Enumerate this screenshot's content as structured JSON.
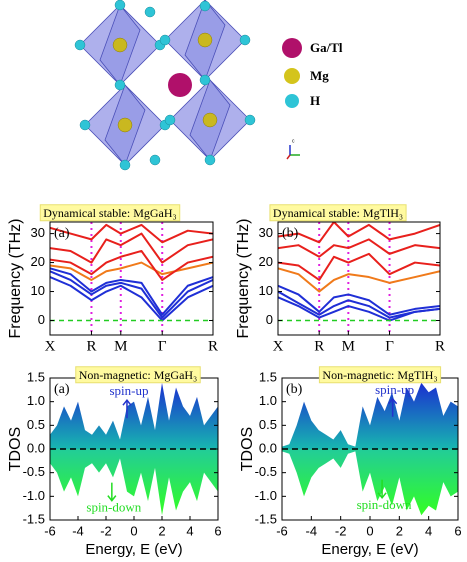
{
  "structure": {
    "legend": [
      "Ga/Tl",
      "Mg",
      "H"
    ],
    "axis_label": "c"
  },
  "chart_data": [
    {
      "type": "line",
      "title": "Dynamical stable: MgGaH₃",
      "panel_label": "(a)",
      "ylabel": "Frequency (THz)",
      "x": [
        0,
        0.35,
        0.707,
        0.96,
        1.207,
        1.56,
        1.914,
        2.35,
        2.78
      ],
      "xlim": [
        0,
        2.78
      ],
      "xticks": [
        {
          "value": 0,
          "label": "X"
        },
        {
          "value": 0.707,
          "label": "R"
        },
        {
          "value": 1.207,
          "label": "M"
        },
        {
          "value": 1.914,
          "label": "Γ"
        },
        {
          "value": 2.78,
          "label": "R"
        }
      ],
      "ylim": [
        -5,
        34
      ],
      "yticks": [
        0,
        10,
        20,
        30
      ],
      "zero_line": true,
      "symmetry_lines": true,
      "series": [
        {
          "color": "#1f2fd6",
          "values": [
            15,
            12,
            7,
            10,
            12,
            8,
            0,
            8,
            12
          ]
        },
        {
          "color": "#1f2fd6",
          "values": [
            17,
            14,
            9,
            12,
            13,
            11,
            1,
            10,
            14
          ]
        },
        {
          "color": "#1f2fd6",
          "values": [
            18,
            16,
            10,
            13,
            14,
            13,
            2,
            12,
            15
          ]
        },
        {
          "color": "#f07a1a",
          "values": [
            19,
            18,
            14,
            17,
            18,
            20,
            16,
            18,
            20
          ]
        },
        {
          "color": "#e8201c",
          "values": [
            21,
            20,
            16,
            20,
            22,
            24,
            14,
            20,
            22
          ]
        },
        {
          "color": "#e8201c",
          "values": [
            25,
            24,
            20,
            28,
            26,
            30,
            20,
            26,
            28
          ]
        },
        {
          "color": "#e8201c",
          "values": [
            32,
            30,
            28,
            33,
            30,
            33,
            27,
            31,
            30
          ]
        }
      ]
    },
    {
      "type": "line",
      "title": "Dynamical stable: MgTlH₃",
      "panel_label": "(b)",
      "ylabel": "Frequency (THz)",
      "x": [
        0,
        0.35,
        0.707,
        0.96,
        1.207,
        1.56,
        1.914,
        2.35,
        2.78
      ],
      "xlim": [
        0,
        2.78
      ],
      "xticks": [
        {
          "value": 0,
          "label": "X"
        },
        {
          "value": 0.707,
          "label": "R"
        },
        {
          "value": 1.207,
          "label": "M"
        },
        {
          "value": 1.914,
          "label": "Γ"
        },
        {
          "value": 2.78,
          "label": "R"
        }
      ],
      "ylim": [
        -5,
        34
      ],
      "yticks": [
        0,
        10,
        20,
        30
      ],
      "zero_line": true,
      "symmetry_lines": true,
      "series": [
        {
          "color": "#1f2fd6",
          "values": [
            8,
            5,
            1,
            3,
            5,
            3,
            0,
            3,
            4
          ]
        },
        {
          "color": "#1f2fd6",
          "values": [
            10,
            6,
            2,
            5,
            7,
            5,
            1,
            3,
            4
          ]
        },
        {
          "color": "#1f2fd6",
          "values": [
            12,
            9,
            3,
            8,
            9,
            7,
            2,
            4,
            5
          ]
        },
        {
          "color": "#f07a1a",
          "values": [
            18,
            16,
            10,
            14,
            16,
            15,
            13,
            15,
            17
          ]
        },
        {
          "color": "#e8201c",
          "values": [
            20,
            19,
            14,
            22,
            20,
            23,
            16,
            20,
            19
          ]
        },
        {
          "color": "#e8201c",
          "values": [
            25,
            26,
            22,
            26,
            25,
            28,
            23,
            26,
            25
          ]
        },
        {
          "color": "#e8201c",
          "values": [
            29,
            30,
            27,
            34,
            29,
            33,
            28,
            30,
            33
          ]
        }
      ]
    },
    {
      "type": "area",
      "title": "Non-magnetic: MgGaH₃",
      "panel_label": "(a)",
      "ylabel": "TDOS",
      "xlabel": "Energy, E (eV)",
      "x": [
        -6,
        -5.5,
        -5,
        -4.5,
        -4,
        -3.5,
        -3,
        -2.5,
        -2,
        -1.5,
        -1,
        -0.5,
        0,
        0.5,
        1,
        1.5,
        2,
        2.5,
        3,
        3.5,
        4,
        4.5,
        5,
        5.5,
        6
      ],
      "xlim": [
        -6,
        6
      ],
      "xticks": [
        -6,
        -4,
        -2,
        0,
        2,
        4,
        6
      ],
      "ylim": [
        -1.5,
        1.5
      ],
      "yticks": [
        -1.5,
        {
          "value": -1,
          "label": "-1.0"
        },
        -0.5,
        {
          "value": 0,
          "label": "0.0"
        },
        0.5,
        {
          "value": 1,
          "label": "1.0"
        },
        1.5
      ],
      "zero_line": true,
      "series": [
        {
          "name": "spin-up",
          "color": "#2233cc",
          "gradient": [
            "#1a2fd0",
            "#18b7b0"
          ],
          "values": [
            0.3,
            0.5,
            0.9,
            0.6,
            1.0,
            0.4,
            0.3,
            0.5,
            0.3,
            0.6,
            0.2,
            0.9,
            1.0,
            0.5,
            1.1,
            0.4,
            1.4,
            0.6,
            1.3,
            0.9,
            0.7,
            1.1,
            0.5,
            0.7,
            0.9
          ]
        },
        {
          "name": "spin-down",
          "color": "#22dd22",
          "gradient": [
            "#22cc99",
            "#33ff22"
          ],
          "values": [
            -0.3,
            -0.5,
            -0.9,
            -0.6,
            -1.0,
            -0.4,
            -0.3,
            -0.5,
            -0.3,
            -0.6,
            -0.2,
            -0.9,
            -1.0,
            -0.5,
            -1.1,
            -0.4,
            -1.4,
            -0.6,
            -1.3,
            -0.9,
            -0.7,
            -1.1,
            -0.5,
            -0.7,
            -0.9
          ]
        }
      ]
    },
    {
      "type": "area",
      "title": "Non-magnetic: MgTlH₃",
      "panel_label": "(b)",
      "ylabel": "TDOS",
      "xlabel": "Energy, E (eV)",
      "x": [
        -6,
        -5.5,
        -5,
        -4.5,
        -4,
        -3.5,
        -3,
        -2.5,
        -2,
        -1.5,
        -1,
        -0.5,
        0,
        0.5,
        1,
        1.5,
        2,
        2.5,
        3,
        3.5,
        4,
        4.5,
        5,
        5.5,
        6
      ],
      "xlim": [
        -6,
        6
      ],
      "xticks": [
        -6,
        -4,
        -2,
        0,
        2,
        4,
        6
      ],
      "ylim": [
        -1.5,
        1.5
      ],
      "yticks": [
        -1.5,
        {
          "value": -1,
          "label": "-1.0"
        },
        -0.5,
        {
          "value": 0,
          "label": "0.0"
        },
        0.5,
        {
          "value": 1,
          "label": "1.0"
        },
        1.5
      ],
      "zero_line": true,
      "series": [
        {
          "name": "spin-up",
          "color": "#2233cc",
          "gradient": [
            "#1a2fd0",
            "#18b7b0"
          ],
          "values": [
            0.05,
            0.1,
            0.5,
            1.0,
            0.6,
            0.4,
            0.3,
            0.2,
            0.4,
            0.1,
            0.05,
            0.9,
            0.5,
            1.1,
            0.8,
            1.2,
            0.6,
            1.3,
            1.0,
            1.4,
            1.2,
            1.3,
            0.7,
            1.0,
            0.9
          ]
        },
        {
          "name": "spin-down",
          "color": "#22dd22",
          "gradient": [
            "#22cc99",
            "#33ff22"
          ],
          "values": [
            -0.05,
            -0.1,
            -0.5,
            -1.0,
            -0.6,
            -0.4,
            -0.3,
            -0.2,
            -0.4,
            -0.1,
            -0.05,
            -0.9,
            -0.5,
            -1.1,
            -0.8,
            -1.2,
            -0.6,
            -1.3,
            -1.0,
            -1.4,
            -1.2,
            -1.3,
            -0.7,
            -1.0,
            -0.9
          ]
        }
      ]
    }
  ]
}
